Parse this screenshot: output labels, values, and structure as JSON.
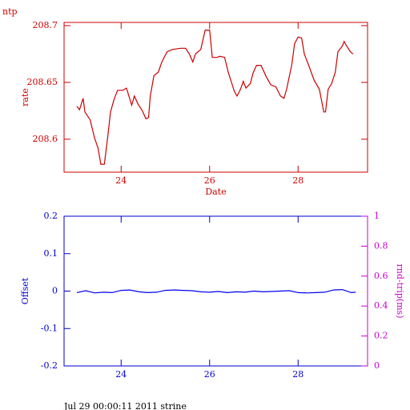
{
  "chart_data": [
    {
      "type": "line",
      "title": "ntp",
      "xlabel": "Date",
      "ylabel": "rate",
      "axis_color": "#cc0000",
      "x": [
        23.0,
        23.06,
        23.14,
        23.18,
        23.3,
        23.4,
        23.48,
        23.54,
        23.62,
        23.7,
        23.76,
        23.84,
        23.92,
        24.04,
        24.12,
        24.16,
        24.24,
        24.3,
        24.38,
        24.48,
        24.56,
        24.62,
        24.66,
        24.74,
        24.84,
        24.92,
        25.04,
        25.16,
        25.34,
        25.46,
        25.54,
        25.62,
        25.68,
        25.8,
        25.9,
        26.0,
        26.06,
        26.16,
        26.24,
        26.34,
        26.42,
        26.56,
        26.62,
        26.7,
        26.76,
        26.82,
        26.92,
        26.98,
        27.06,
        27.16,
        27.28,
        27.38,
        27.5,
        27.6,
        27.68,
        27.74,
        27.86,
        27.92,
        28.0,
        28.08,
        28.14,
        28.26,
        28.36,
        28.48,
        28.58,
        28.62,
        28.68,
        28.76,
        28.84,
        28.9,
        29.0,
        29.04,
        29.1,
        29.18,
        29.24
      ],
      "series": [
        {
          "color": "#cc0000",
          "values": [
            208.629,
            208.626,
            208.636,
            208.624,
            208.617,
            208.601,
            208.592,
            208.578,
            208.578,
            208.603,
            208.624,
            208.635,
            208.643,
            208.643,
            208.645,
            208.64,
            208.63,
            208.638,
            208.631,
            208.625,
            208.618,
            208.619,
            208.638,
            208.656,
            208.659,
            208.668,
            208.677,
            208.679,
            208.68,
            208.68,
            208.675,
            208.668,
            208.675,
            208.679,
            208.696,
            208.696,
            208.672,
            208.672,
            208.673,
            208.672,
            208.659,
            208.642,
            208.638,
            208.644,
            208.651,
            208.645,
            208.649,
            208.658,
            208.665,
            208.665,
            208.655,
            208.648,
            208.646,
            208.638,
            208.636,
            208.644,
            208.666,
            208.684,
            208.69,
            208.689,
            208.675,
            208.663,
            208.652,
            208.644,
            208.624,
            208.624,
            208.644,
            208.649,
            208.659,
            208.677,
            208.682,
            208.686,
            208.682,
            208.677,
            208.675
          ]
        }
      ],
      "xlim": [
        22.71,
        29.57
      ],
      "xticks": [
        24,
        26,
        28
      ],
      "ylim": [
        208.571,
        208.7028
      ],
      "yticks": [
        208.6,
        208.65,
        208.7
      ]
    },
    {
      "type": "line",
      "ylabel": "Offset",
      "y2label": "rnd-trip(ms)",
      "axis_color": "#0000cc",
      "y2_color": "#cc00cc",
      "x": [
        23.0,
        23.2,
        23.4,
        23.6,
        23.8,
        24.0,
        24.2,
        24.4,
        24.6,
        24.8,
        25.0,
        25.2,
        25.4,
        25.6,
        25.8,
        26.0,
        26.2,
        26.4,
        26.6,
        26.8,
        27.0,
        27.2,
        27.4,
        27.6,
        27.8,
        28.0,
        28.2,
        28.4,
        28.6,
        28.8,
        29.0,
        29.2,
        29.3
      ],
      "series": [
        {
          "color": "#0000ee",
          "values": [
            -0.004,
            0.001,
            -0.005,
            -0.003,
            -0.004,
            0.002,
            0.003,
            -0.002,
            -0.004,
            -0.003,
            0.002,
            0.003,
            0.002,
            0.001,
            -0.002,
            -0.003,
            -0.001,
            -0.004,
            -0.002,
            -0.003,
            0.0,
            -0.002,
            -0.001,
            0.0,
            0.001,
            -0.004,
            -0.005,
            -0.004,
            -0.003,
            0.003,
            0.004,
            -0.004,
            -0.003
          ]
        }
      ],
      "xlim": [
        22.71,
        29.57
      ],
      "xticks": [
        24,
        26,
        28
      ],
      "ylim": [
        -0.2,
        0.2
      ],
      "yticks": [
        -0.2,
        -0.1,
        0,
        0.1,
        0.2
      ],
      "y2lim": [
        0,
        1
      ],
      "y2ticks": [
        0,
        0.2,
        0.4,
        0.6,
        0.8,
        1
      ]
    }
  ],
  "footer": "Jul 29 00:00:11 2011 strine"
}
